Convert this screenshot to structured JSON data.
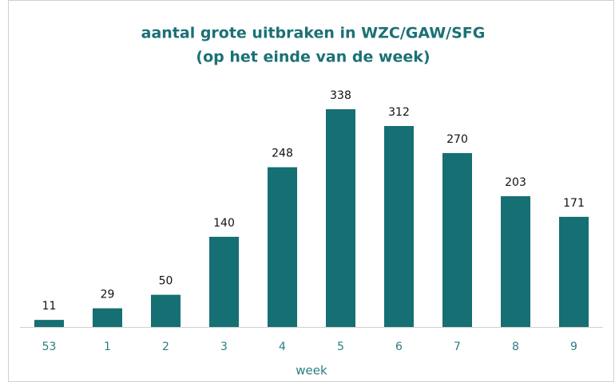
{
  "chart_data": {
    "type": "bar",
    "title": "aantal grote uitbraken in WZC/GAW/SFG",
    "subtitle": "(op het einde van de week)",
    "x_label": "week",
    "categories": [
      "53",
      "1",
      "2",
      "3",
      "4",
      "5",
      "6",
      "7",
      "8",
      "9"
    ],
    "values": [
      11,
      29,
      50,
      140,
      248,
      338,
      312,
      270,
      203,
      171
    ],
    "color": "#156f73"
  }
}
